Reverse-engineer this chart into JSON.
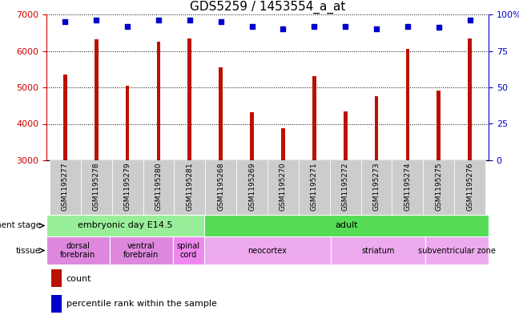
{
  "title": "GDS5259 / 1453554_a_at",
  "samples": [
    "GSM1195277",
    "GSM1195278",
    "GSM1195279",
    "GSM1195280",
    "GSM1195281",
    "GSM1195268",
    "GSM1195269",
    "GSM1195270",
    "GSM1195271",
    "GSM1195272",
    "GSM1195273",
    "GSM1195274",
    "GSM1195275",
    "GSM1195276"
  ],
  "counts": [
    5350,
    6320,
    5050,
    6260,
    6340,
    5560,
    4320,
    3870,
    5300,
    4340,
    4760,
    6060,
    4910,
    6330
  ],
  "percentiles": [
    95,
    96,
    92,
    96,
    96,
    95,
    92,
    90,
    92,
    92,
    90,
    92,
    91,
    96
  ],
  "ylim_left": [
    3000,
    7000
  ],
  "ylim_right": [
    0,
    100
  ],
  "yticks_left": [
    3000,
    4000,
    5000,
    6000,
    7000
  ],
  "yticks_right": [
    0,
    25,
    50,
    75,
    100
  ],
  "bar_color": "#bb1100",
  "square_color": "#0000cc",
  "background_color": "#ffffff",
  "dev_stage_groups": [
    {
      "label": "embryonic day E14.5",
      "start": 0,
      "end": 5,
      "color": "#99ee99"
    },
    {
      "label": "adult",
      "start": 5,
      "end": 14,
      "color": "#55dd55"
    }
  ],
  "tissue_groups": [
    {
      "label": "dorsal\nforebrain",
      "start": 0,
      "end": 2,
      "color": "#dd88dd"
    },
    {
      "label": "ventral\nforebrain",
      "start": 2,
      "end": 4,
      "color": "#dd88dd"
    },
    {
      "label": "spinal\ncord",
      "start": 4,
      "end": 5,
      "color": "#ee88ee"
    },
    {
      "label": "neocortex",
      "start": 5,
      "end": 9,
      "color": "#eeaaee"
    },
    {
      "label": "striatum",
      "start": 9,
      "end": 12,
      "color": "#eeaaee"
    },
    {
      "label": "subventricular zone",
      "start": 12,
      "end": 14,
      "color": "#eeaaee"
    }
  ],
  "left_axis_color": "#cc0000",
  "right_axis_color": "#0000cc",
  "bar_width": 0.12,
  "figwidth": 6.48,
  "figheight": 3.93,
  "dpi": 100
}
